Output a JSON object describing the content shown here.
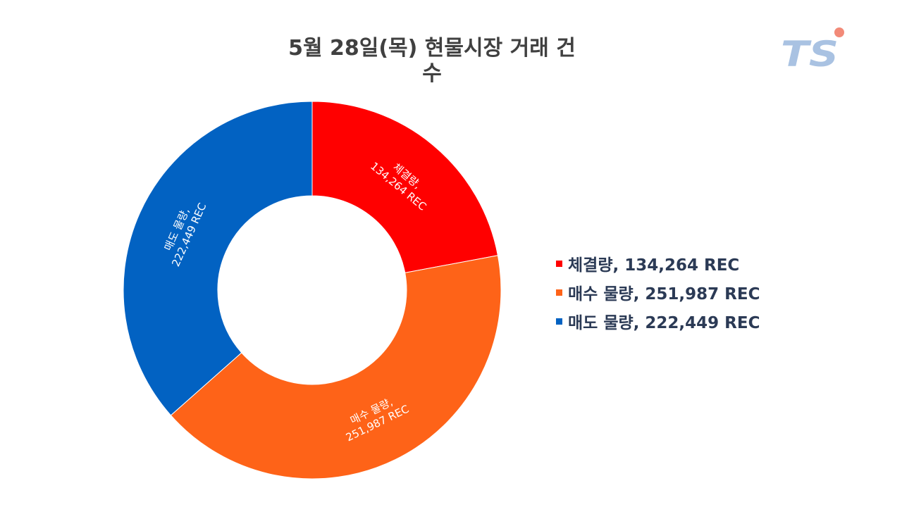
{
  "chart_data": {
    "type": "pie",
    "title": "5월 28일(목) 현물시장 거래 건수",
    "title_lines": [
      "5월 28일(목) 현물시장 거래 건",
      "수"
    ],
    "hole": true,
    "legend_position": "right",
    "slices": [
      {
        "label": "체결량",
        "value": 134264,
        "label_lines": [
          "체결량,",
          "134,264 REC"
        ],
        "legend_text": "체결량, 134,264 REC",
        "color": "#ff0000"
      },
      {
        "label": "매수 물량",
        "value": 251987,
        "label_lines": [
          "매수 물량,",
          "251,987 REC"
        ],
        "legend_text": "매수 물량, 251,987 REC",
        "color": "#fe6318"
      },
      {
        "label": "매도 물량",
        "value": 222449,
        "label_lines": [
          "매도 물량,",
          "222,449 REC"
        ],
        "legend_text": "매도 물량, 222,449 REC",
        "color": "#0262c2"
      }
    ]
  },
  "logo": {
    "text": "TS",
    "color": "#a9c2e2",
    "dot_color": "#f28a78"
  }
}
